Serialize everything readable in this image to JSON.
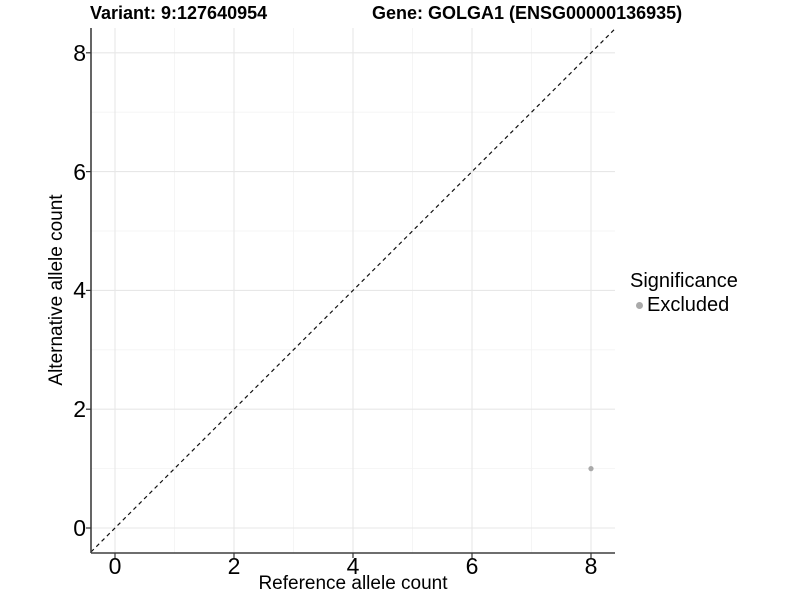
{
  "titles": {
    "variant": "Variant: 9:127640954",
    "gene": "Gene: GOLGA1 (ENSG00000136935)"
  },
  "axes": {
    "x": {
      "label": "Reference allele count"
    },
    "y": {
      "label": "Alternative allele count"
    }
  },
  "legend": {
    "title": "Significance",
    "items": [
      {
        "label": "Excluded",
        "color": "#aaaaaa"
      }
    ]
  },
  "colors": {
    "background": "#ffffff",
    "text": "#000000",
    "axis_line": "#3f3f3f",
    "tick": "#333333",
    "grid_major": "#e7e7e7",
    "grid_minor": "#f3f3f3",
    "point": "#aaaaaa",
    "reference_line": "#111111"
  },
  "chart_data": {
    "type": "scatter",
    "title": "Variant: 9:127640954   Gene: GOLGA1 (ENSG00000136935)",
    "xlabel": "Reference allele count",
    "ylabel": "Alternative allele count",
    "xlim": [
      -0.42,
      8.42
    ],
    "ylim": [
      -0.42,
      8.42
    ],
    "x_ticks": [
      0,
      2,
      4,
      6,
      8
    ],
    "y_ticks": [
      0,
      2,
      4,
      6,
      8
    ],
    "grid": {
      "major_at": [
        0,
        2,
        4,
        6,
        8
      ],
      "minor_at": [
        1,
        3,
        5,
        7
      ]
    },
    "legend_position": "right",
    "series": [
      {
        "name": "Excluded",
        "color": "#aaaaaa",
        "points": [
          {
            "x": 8,
            "y": 1
          }
        ]
      }
    ],
    "reference_line": {
      "slope": 1,
      "intercept": 0,
      "style": "dashed",
      "color": "#111111"
    }
  }
}
